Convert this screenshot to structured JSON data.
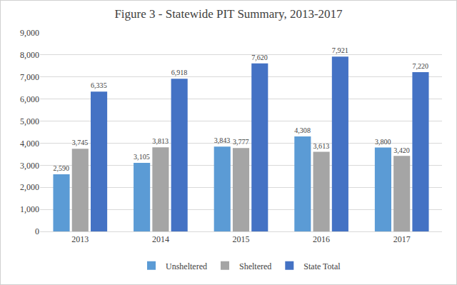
{
  "chart_data": {
    "type": "bar",
    "title": "Figure 3 - Statewide PIT Summary, 2013-2017",
    "categories": [
      "2013",
      "2014",
      "2015",
      "2016",
      "2017"
    ],
    "series": [
      {
        "name": "Unsheltered",
        "color": "#5b9bd5",
        "values": [
          2590,
          3105,
          3843,
          4308,
          3800
        ],
        "value_labels": [
          "2,590",
          "3,105",
          "3,843",
          "4,308",
          "3,800"
        ]
      },
      {
        "name": "Sheltered",
        "color": "#a5a5a5",
        "values": [
          3745,
          3813,
          3777,
          3613,
          3420
        ],
        "value_labels": [
          "3,745",
          "3,813",
          "3,777",
          "3,613",
          "3,420"
        ]
      },
      {
        "name": "State Total",
        "color": "#4472c4",
        "values": [
          6335,
          6918,
          7620,
          7921,
          7220
        ],
        "value_labels": [
          "6,335",
          "6,918",
          "7,620",
          "7,921",
          "7,220"
        ]
      }
    ],
    "ylim": [
      0,
      9000
    ],
    "yticks": [
      0,
      {
        "value": 1000,
        "label": "1,000"
      },
      {
        "value": 2000,
        "label": "2,000"
      },
      {
        "value": 3000,
        "label": "3,000"
      },
      {
        "value": 4000,
        "label": "4,000"
      },
      {
        "value": 5000,
        "label": "5,000"
      },
      {
        "value": 6000,
        "label": "6,000"
      },
      {
        "value": 7000,
        "label": "7,000"
      },
      {
        "value": 8000,
        "label": "8,000"
      },
      {
        "value": 9000,
        "label": "9,000"
      }
    ],
    "grid": true,
    "legend": "bottom",
    "data_labels": true
  }
}
